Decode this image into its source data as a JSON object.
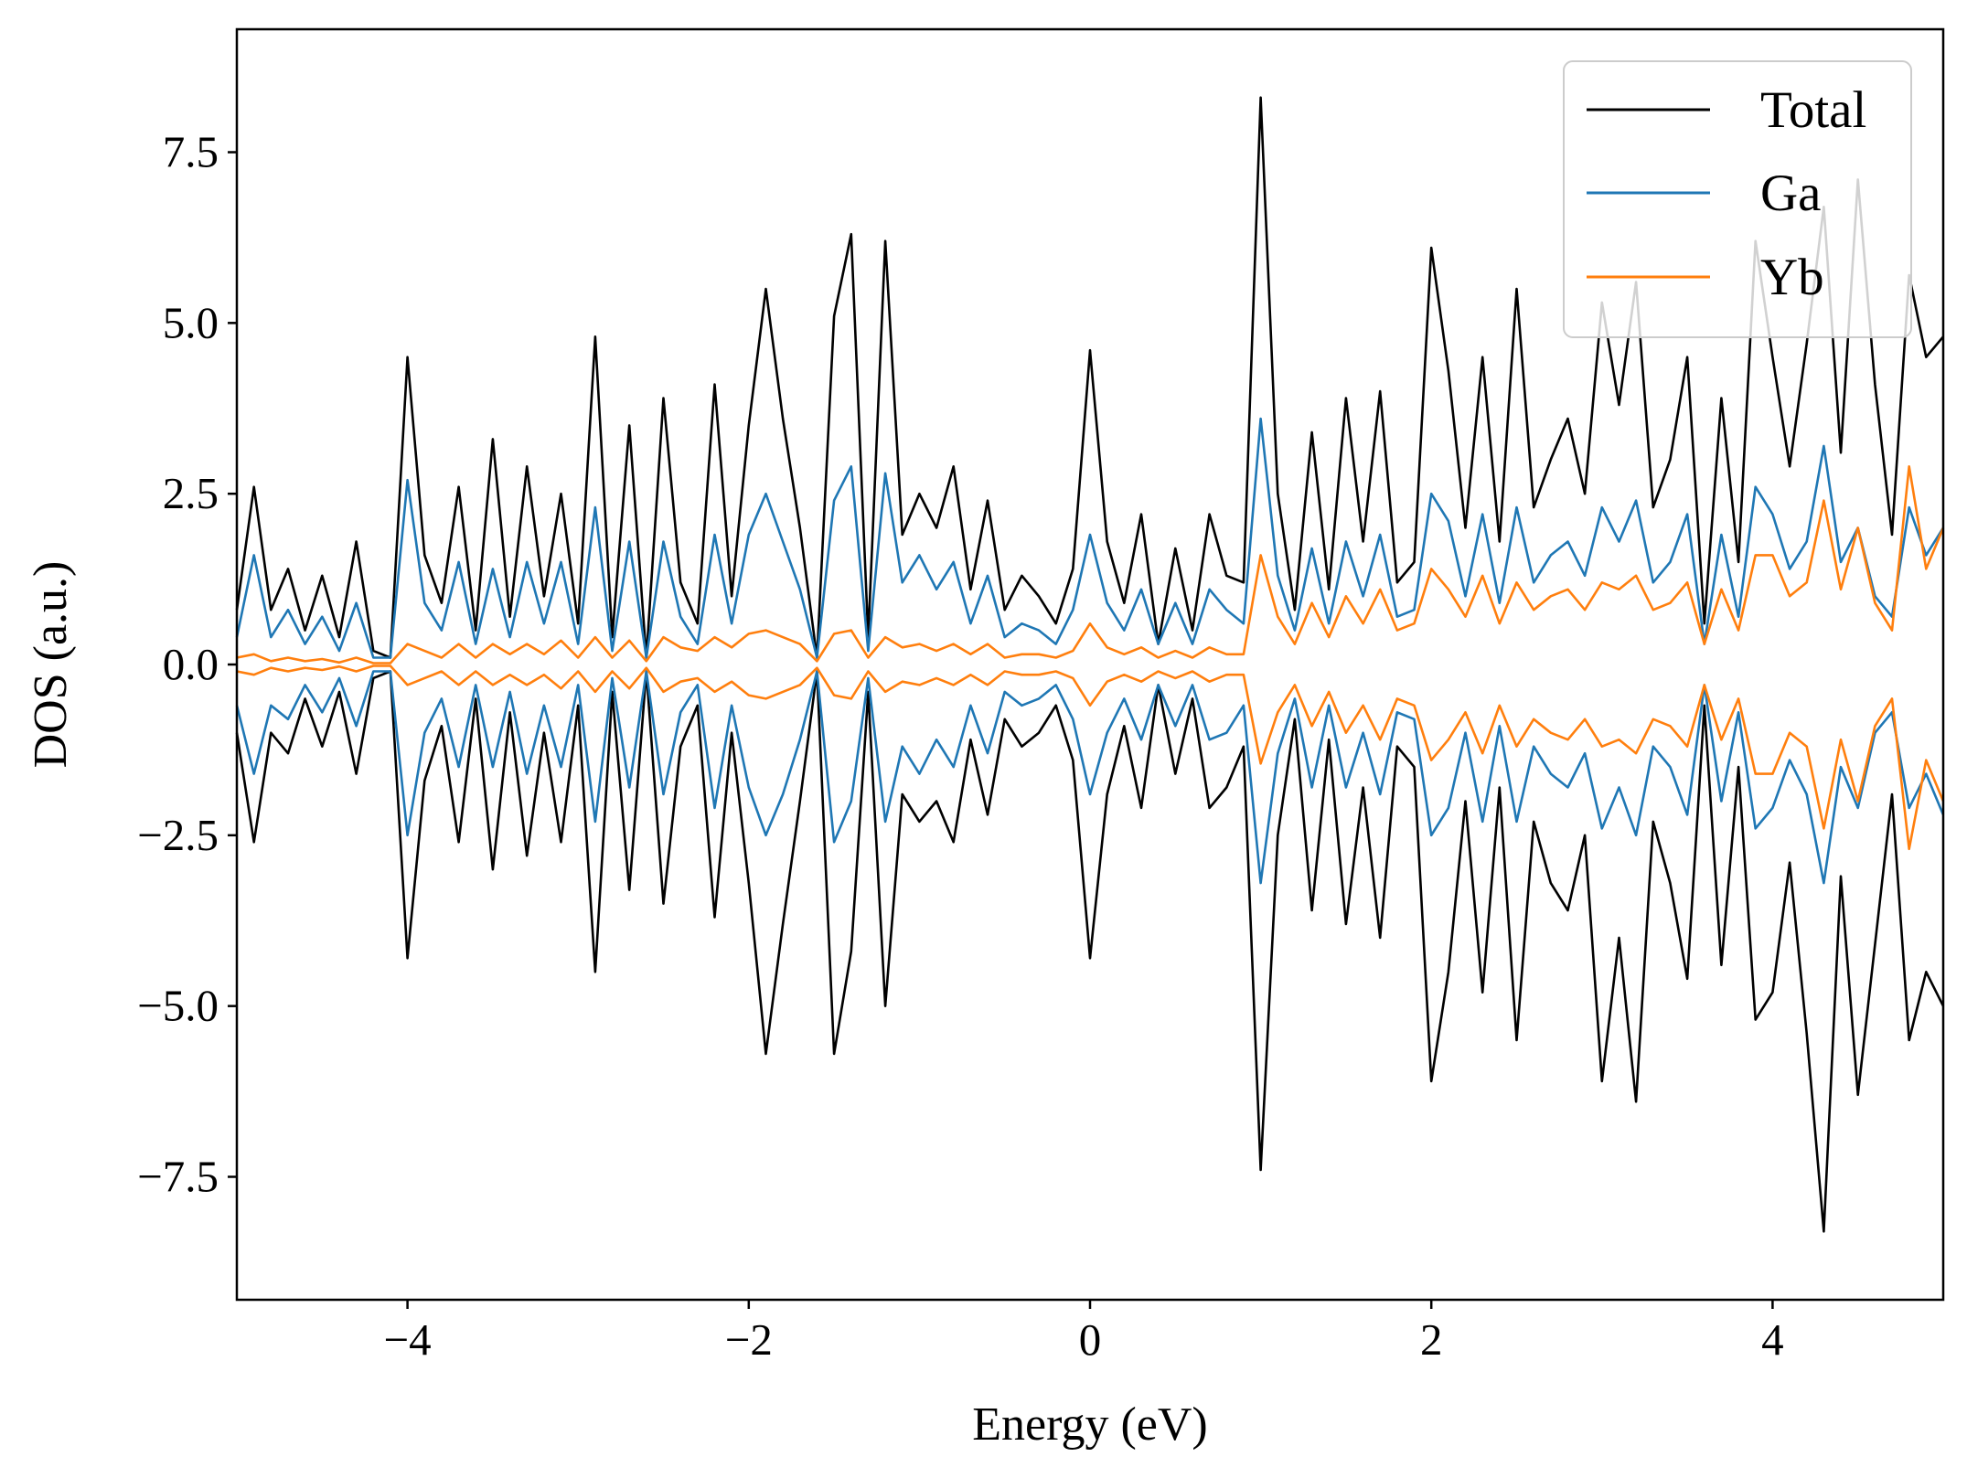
{
  "chart_data": {
    "type": "line",
    "title": "",
    "xlabel": "Energy (eV)",
    "ylabel": "DOS (a.u.)",
    "xlim": [
      -5,
      5
    ],
    "ylim": [
      -9.3,
      9.3
    ],
    "xticks": [
      -4,
      -2,
      0,
      2,
      4
    ],
    "xtick_labels": [
      "−4",
      "−2",
      "0",
      "2",
      "4"
    ],
    "yticks": [
      7.5,
      5.0,
      2.5,
      0.0,
      -2.5,
      -5.0,
      -7.5
    ],
    "ytick_labels": [
      "7.5",
      "5.0",
      "2.5",
      "0.0",
      "−2.5",
      "−5.0",
      "−7.5"
    ],
    "grid": false,
    "legend_position": "top-right",
    "x": [
      -5.0,
      -4.9,
      -4.8,
      -4.7,
      -4.6,
      -4.5,
      -4.4,
      -4.3,
      -4.2,
      -4.1,
      -4.0,
      -3.9,
      -3.8,
      -3.7,
      -3.6,
      -3.5,
      -3.4,
      -3.3,
      -3.2,
      -3.1,
      -3.0,
      -2.9,
      -2.8,
      -2.7,
      -2.6,
      -2.5,
      -2.4,
      -2.3,
      -2.2,
      -2.1,
      -2.0,
      -1.9,
      -1.8,
      -1.7,
      -1.6,
      -1.5,
      -1.4,
      -1.3,
      -1.2,
      -1.1,
      -1.0,
      -0.9,
      -0.8,
      -0.7,
      -0.6,
      -0.5,
      -0.4,
      -0.3,
      -0.2,
      -0.1,
      0.0,
      0.1,
      0.2,
      0.3,
      0.4,
      0.5,
      0.6,
      0.7,
      0.8,
      0.9,
      1.0,
      1.1,
      1.2,
      1.3,
      1.4,
      1.5,
      1.6,
      1.7,
      1.8,
      1.9,
      2.0,
      2.1,
      2.2,
      2.3,
      2.4,
      2.5,
      2.6,
      2.7,
      2.8,
      2.9,
      3.0,
      3.1,
      3.2,
      3.3,
      3.4,
      3.5,
      3.6,
      3.7,
      3.8,
      3.9,
      4.0,
      4.1,
      4.2,
      4.3,
      4.4,
      4.5,
      4.6,
      4.7,
      4.8,
      4.9,
      5.0
    ],
    "series": [
      {
        "name": "Total",
        "color": "#000000",
        "up": [
          0.8,
          2.6,
          0.8,
          1.4,
          0.5,
          1.3,
          0.4,
          1.8,
          0.2,
          0.1,
          4.5,
          1.6,
          0.9,
          2.6,
          0.5,
          3.3,
          0.7,
          2.9,
          1.0,
          2.5,
          0.6,
          4.8,
          0.4,
          3.5,
          0.1,
          3.9,
          1.2,
          0.6,
          4.1,
          1.0,
          3.5,
          5.5,
          3.6,
          2.0,
          0.1,
          5.1,
          6.3,
          0.4,
          6.2,
          1.9,
          2.5,
          2.0,
          2.9,
          1.1,
          2.4,
          0.8,
          1.3,
          1.0,
          0.6,
          1.4,
          4.6,
          1.8,
          0.9,
          2.2,
          0.3,
          1.7,
          0.5,
          2.2,
          1.3,
          1.2,
          8.3,
          2.5,
          0.8,
          3.4,
          1.1,
          3.9,
          1.8,
          4.0,
          1.2,
          1.5,
          6.1,
          4.3,
          2.0,
          4.5,
          1.8,
          5.5,
          2.3,
          3.0,
          3.6,
          2.5,
          5.3,
          3.8,
          5.6,
          2.3,
          3.0,
          4.5,
          0.6,
          3.9,
          1.5,
          6.2,
          4.5,
          2.9,
          4.7,
          6.7,
          3.1,
          7.1,
          4.1,
          1.9,
          5.7,
          4.5,
          4.8
        ],
        "down": [
          -1.0,
          -2.6,
          -1.0,
          -1.3,
          -0.5,
          -1.2,
          -0.4,
          -1.6,
          -0.2,
          -0.1,
          -4.3,
          -1.7,
          -0.9,
          -2.6,
          -0.5,
          -3.0,
          -0.7,
          -2.8,
          -1.0,
          -2.6,
          -0.6,
          -4.5,
          -0.4,
          -3.3,
          -0.1,
          -3.5,
          -1.2,
          -0.6,
          -3.7,
          -1.0,
          -3.2,
          -5.7,
          -3.8,
          -2.0,
          -0.1,
          -5.7,
          -4.2,
          -0.4,
          -5.0,
          -1.9,
          -2.3,
          -2.0,
          -2.6,
          -1.1,
          -2.2,
          -0.8,
          -1.2,
          -1.0,
          -0.6,
          -1.4,
          -4.3,
          -1.9,
          -0.9,
          -2.1,
          -0.3,
          -1.6,
          -0.5,
          -2.1,
          -1.8,
          -1.2,
          -7.4,
          -2.5,
          -0.8,
          -3.6,
          -1.1,
          -3.8,
          -1.8,
          -4.0,
          -1.2,
          -1.5,
          -6.1,
          -4.5,
          -2.0,
          -4.8,
          -1.8,
          -5.5,
          -2.3,
          -3.2,
          -3.6,
          -2.5,
          -6.1,
          -4.0,
          -6.4,
          -2.3,
          -3.2,
          -4.6,
          -0.6,
          -4.4,
          -1.5,
          -5.2,
          -4.8,
          -2.9,
          -5.4,
          -8.3,
          -3.1,
          -6.3,
          -4.1,
          -1.9,
          -5.5,
          -4.5,
          -5.0
        ]
      },
      {
        "name": "Ga",
        "color": "#1f77b4",
        "up": [
          0.4,
          1.6,
          0.4,
          0.8,
          0.3,
          0.7,
          0.2,
          0.9,
          0.1,
          0.1,
          2.7,
          0.9,
          0.5,
          1.5,
          0.3,
          1.4,
          0.4,
          1.5,
          0.6,
          1.5,
          0.3,
          2.3,
          0.2,
          1.8,
          0.1,
          1.8,
          0.7,
          0.3,
          1.9,
          0.6,
          1.9,
          2.5,
          1.8,
          1.1,
          0.1,
          2.4,
          2.9,
          0.2,
          2.8,
          1.2,
          1.6,
          1.1,
          1.5,
          0.6,
          1.3,
          0.4,
          0.6,
          0.5,
          0.3,
          0.8,
          1.9,
          0.9,
          0.5,
          1.1,
          0.3,
          0.9,
          0.3,
          1.1,
          0.8,
          0.6,
          3.6,
          1.3,
          0.5,
          1.7,
          0.6,
          1.8,
          1.0,
          1.9,
          0.7,
          0.8,
          2.5,
          2.1,
          1.0,
          2.2,
          0.9,
          2.3,
          1.2,
          1.6,
          1.8,
          1.3,
          2.3,
          1.8,
          2.4,
          1.2,
          1.5,
          2.2,
          0.3,
          1.9,
          0.7,
          2.6,
          2.2,
          1.4,
          1.8,
          3.2,
          1.5,
          2.0,
          1.0,
          0.7,
          2.3,
          1.6,
          2.0
        ],
        "down": [
          -0.6,
          -1.6,
          -0.6,
          -0.8,
          -0.3,
          -0.7,
          -0.2,
          -0.9,
          -0.1,
          -0.1,
          -2.5,
          -1.0,
          -0.5,
          -1.5,
          -0.3,
          -1.5,
          -0.4,
          -1.6,
          -0.6,
          -1.5,
          -0.3,
          -2.3,
          -0.2,
          -1.8,
          -0.1,
          -1.9,
          -0.7,
          -0.3,
          -2.1,
          -0.6,
          -1.8,
          -2.5,
          -1.9,
          -1.1,
          -0.1,
          -2.6,
          -2.0,
          -0.2,
          -2.3,
          -1.2,
          -1.6,
          -1.1,
          -1.5,
          -0.6,
          -1.3,
          -0.4,
          -0.6,
          -0.5,
          -0.3,
          -0.8,
          -1.9,
          -1.0,
          -0.5,
          -1.1,
          -0.3,
          -0.9,
          -0.3,
          -1.1,
          -1.0,
          -0.6,
          -3.2,
          -1.3,
          -0.5,
          -1.8,
          -0.6,
          -1.8,
          -1.0,
          -1.9,
          -0.7,
          -0.8,
          -2.5,
          -2.1,
          -1.0,
          -2.3,
          -0.9,
          -2.3,
          -1.2,
          -1.6,
          -1.8,
          -1.3,
          -2.4,
          -1.8,
          -2.5,
          -1.2,
          -1.5,
          -2.2,
          -0.3,
          -2.0,
          -0.7,
          -2.4,
          -2.1,
          -1.4,
          -1.9,
          -3.2,
          -1.5,
          -2.1,
          -1.0,
          -0.7,
          -2.1,
          -1.6,
          -2.2
        ]
      },
      {
        "name": "Yb",
        "color": "#ff7f0e",
        "up": [
          0.1,
          0.15,
          0.05,
          0.1,
          0.05,
          0.08,
          0.03,
          0.1,
          0.02,
          0.02,
          0.3,
          0.2,
          0.1,
          0.3,
          0.1,
          0.3,
          0.15,
          0.3,
          0.15,
          0.35,
          0.1,
          0.4,
          0.1,
          0.35,
          0.05,
          0.4,
          0.25,
          0.2,
          0.4,
          0.25,
          0.45,
          0.5,
          0.4,
          0.3,
          0.05,
          0.45,
          0.5,
          0.1,
          0.4,
          0.25,
          0.3,
          0.2,
          0.3,
          0.15,
          0.3,
          0.1,
          0.15,
          0.15,
          0.1,
          0.2,
          0.6,
          0.25,
          0.15,
          0.25,
          0.1,
          0.2,
          0.1,
          0.25,
          0.15,
          0.15,
          1.6,
          0.7,
          0.3,
          0.9,
          0.4,
          1.0,
          0.6,
          1.1,
          0.5,
          0.6,
          1.4,
          1.1,
          0.7,
          1.3,
          0.6,
          1.2,
          0.8,
          1.0,
          1.1,
          0.8,
          1.2,
          1.1,
          1.3,
          0.8,
          0.9,
          1.2,
          0.3,
          1.1,
          0.5,
          1.6,
          1.6,
          1.0,
          1.2,
          2.4,
          1.1,
          2.0,
          0.9,
          0.5,
          2.9,
          1.4,
          2.0
        ],
        "down": [
          -0.1,
          -0.15,
          -0.05,
          -0.1,
          -0.05,
          -0.08,
          -0.03,
          -0.1,
          -0.02,
          -0.02,
          -0.3,
          -0.2,
          -0.1,
          -0.3,
          -0.1,
          -0.3,
          -0.15,
          -0.3,
          -0.15,
          -0.35,
          -0.1,
          -0.4,
          -0.1,
          -0.35,
          -0.05,
          -0.4,
          -0.25,
          -0.2,
          -0.4,
          -0.25,
          -0.45,
          -0.5,
          -0.4,
          -0.3,
          -0.05,
          -0.45,
          -0.5,
          -0.1,
          -0.4,
          -0.25,
          -0.3,
          -0.2,
          -0.3,
          -0.15,
          -0.3,
          -0.1,
          -0.15,
          -0.15,
          -0.1,
          -0.2,
          -0.6,
          -0.25,
          -0.15,
          -0.25,
          -0.1,
          -0.2,
          -0.1,
          -0.25,
          -0.15,
          -0.15,
          -1.45,
          -0.7,
          -0.3,
          -0.9,
          -0.4,
          -1.0,
          -0.6,
          -1.1,
          -0.5,
          -0.6,
          -1.4,
          -1.1,
          -0.7,
          -1.3,
          -0.6,
          -1.2,
          -0.8,
          -1.0,
          -1.1,
          -0.8,
          -1.2,
          -1.1,
          -1.3,
          -0.8,
          -0.9,
          -1.2,
          -0.3,
          -1.1,
          -0.5,
          -1.6,
          -1.6,
          -1.0,
          -1.2,
          -2.4,
          -1.1,
          -2.0,
          -0.9,
          -0.5,
          -2.7,
          -1.4,
          -2.0
        ]
      }
    ]
  }
}
